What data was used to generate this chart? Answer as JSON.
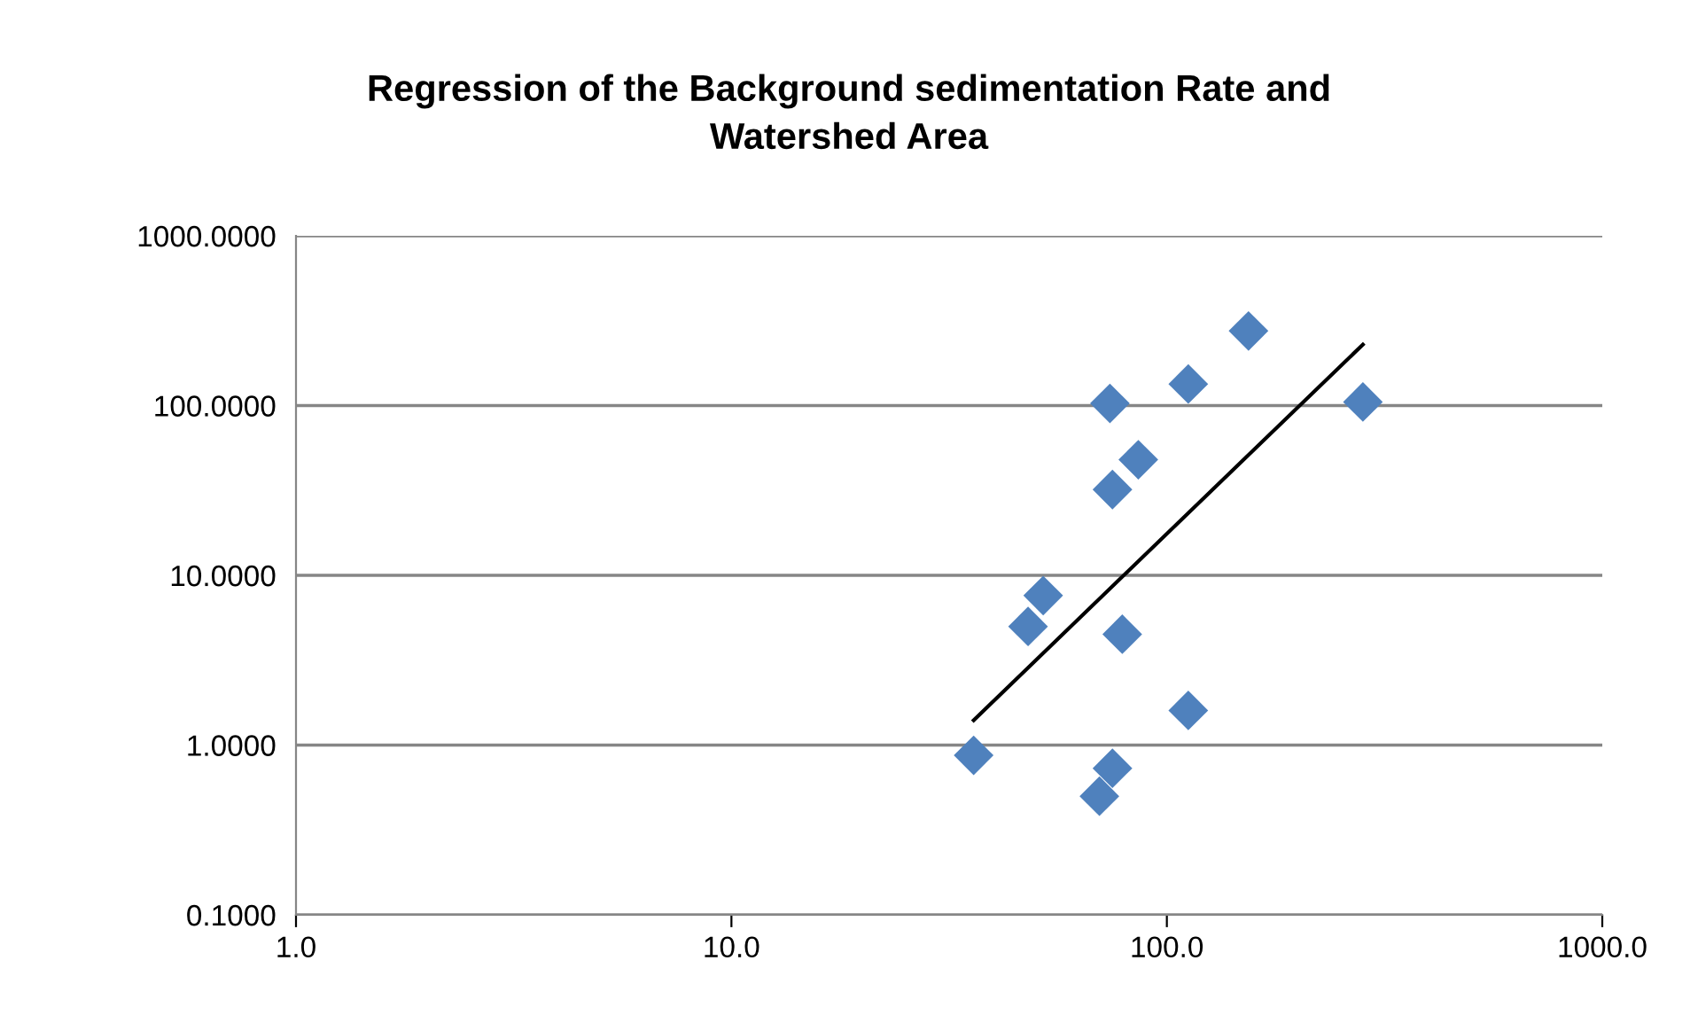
{
  "chart_data": {
    "type": "scatter",
    "title": "Regression of the Background sedimentation Rate and\nWatershed Area",
    "log": "xy",
    "grid": "y",
    "marker": "diamond",
    "xlim": [
      1,
      1000
    ],
    "xticks": [
      {
        "value": 1,
        "label": "1.0"
      },
      {
        "value": 10,
        "label": "10.0"
      },
      {
        "value": 100,
        "label": "100.0"
      },
      {
        "value": 1000,
        "label": "1000.0"
      }
    ],
    "ylim": [
      0.1,
      1000
    ],
    "yticks": [
      {
        "value": 0.1,
        "label": "0.1000"
      },
      {
        "value": 1,
        "label": "1.0000"
      },
      {
        "value": 10,
        "label": "10.0000"
      },
      {
        "value": 100,
        "label": "100.0000"
      },
      {
        "value": 1000,
        "label": "1000.0000"
      }
    ],
    "series": [
      {
        "color": "#4f81bd",
        "x": [
          36,
          70,
          75,
          112,
          48,
          52,
          79,
          75,
          86,
          74,
          112,
          154,
          282
        ],
        "values": [
          0.87,
          0.5,
          0.73,
          1.6,
          5.0,
          7.6,
          4.5,
          32,
          48,
          103,
          134,
          275,
          105
        ]
      },
      {
        "type": "line",
        "color": "#000000",
        "marker": "none",
        "line_style": "solid",
        "x": [
          36,
          282
        ],
        "values": [
          1.4,
          229
        ]
      }
    ]
  }
}
